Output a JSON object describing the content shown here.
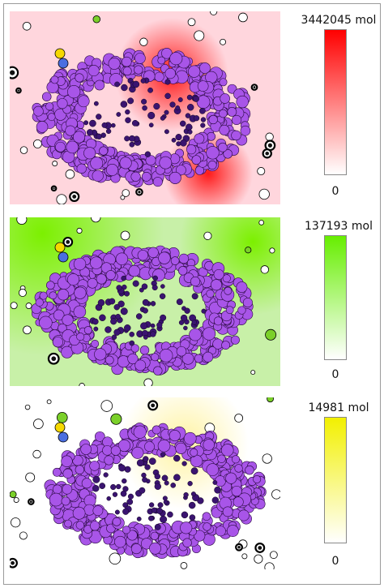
{
  "panels": [
    {
      "max_label": "3442045 mol",
      "min_label": "0",
      "bg_color": "#ffd6dd",
      "hot_color": "#ff1a1a",
      "cbar_top_color": "#ff0000",
      "cbar_bottom_color": "#ffffff"
    },
    {
      "max_label": "137193 mol",
      "min_label": "0",
      "bg_color": "#c8f0a8",
      "hot_color": "#7cf000",
      "cbar_top_color": "#66ee00",
      "cbar_bottom_color": "#ffffff"
    },
    {
      "max_label": "14981 mol",
      "min_label": "0",
      "bg_color": "#ffffff",
      "hot_color": "#fff3a0",
      "cbar_top_color": "#f2f000",
      "cbar_bottom_color": "#ffffff"
    }
  ],
  "colors": {
    "cell_ring": "#a855e8",
    "cell_inner": "#3a1470",
    "particle_white": "#ffffff",
    "particle_black": "#111111",
    "particle_yellow": "#f5d800",
    "particle_blue": "#4a6ee0",
    "particle_green": "#7bd02a"
  }
}
